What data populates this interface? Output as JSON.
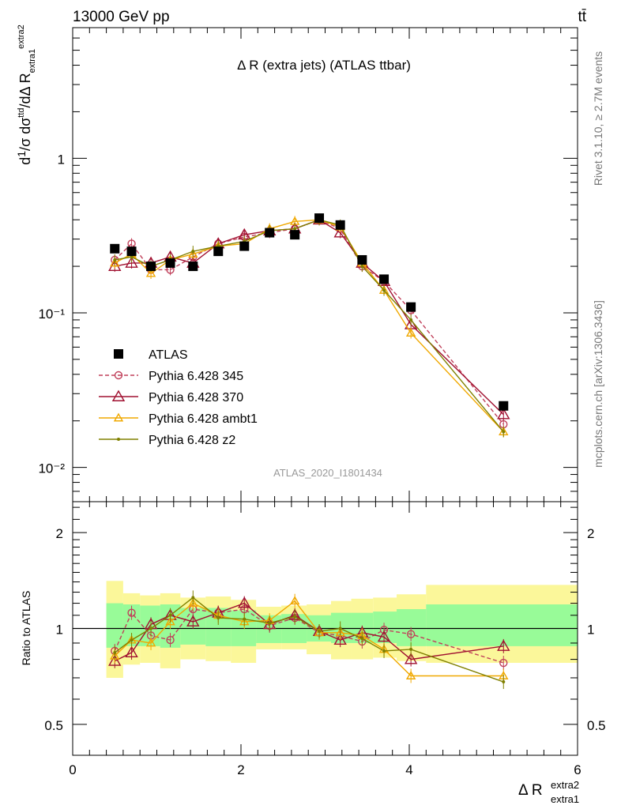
{
  "header": {
    "energy_label": "13000 GeV pp",
    "process_label": "tt̄",
    "plot_title": "Δ R (extra jets) (ATLAS ttbar)",
    "analysis_id": "ATLAS_2020_I1801434",
    "rivet_label": "Rivet 3.1.10, ≥ 2.7M events",
    "mcplots_label": "mcplots.cern.ch [arXiv:1306.3436]"
  },
  "axes": {
    "y_main_label": "d¹/σ dσ^ttd / dΔR extra1 extra2",
    "y_main_ticks": [
      "1",
      "10⁻¹",
      "10⁻²"
    ],
    "y_ratio_label": "Ratio to ATLAS",
    "y_ratio_ticks": [
      "2",
      "1",
      "0.5"
    ],
    "x_ticks": [
      "0",
      "2",
      "4",
      "6"
    ],
    "x_label_main": "Δ R",
    "x_label_sup": "extra2",
    "x_label_sub": "extra1"
  },
  "legend": [
    {
      "label": "ATLAS",
      "marker": "square",
      "color": "#000000"
    },
    {
      "label": "Pythia 6.428 345",
      "marker": "circle",
      "color": "#c0405a",
      "dashed": true
    },
    {
      "label": "Pythia 6.428 370",
      "marker": "triangle",
      "color": "#a01030"
    },
    {
      "label": "Pythia 6.428 ambt1",
      "marker": "triangle",
      "color": "#f0a800"
    },
    {
      "label": "Pythia 6.428 z2",
      "marker": "dot",
      "color": "#808000"
    }
  ],
  "chart_data": {
    "type": "scatter",
    "x": [
      0.5,
      0.7,
      0.93,
      1.16,
      1.43,
      1.73,
      2.04,
      2.34,
      2.64,
      2.93,
      3.18,
      3.44,
      3.7,
      4.02,
      5.12
    ],
    "xlim": [
      0,
      6
    ],
    "ylim": [
      0.006,
      7
    ],
    "y_scale": "log",
    "ratio_ylim": [
      0.4,
      2.5
    ],
    "ratio_y_scale": "log",
    "data": {
      "name": "ATLAS",
      "values": [
        0.26,
        0.25,
        0.2,
        0.21,
        0.2,
        0.25,
        0.27,
        0.33,
        0.32,
        0.41,
        0.37,
        0.22,
        0.165,
        0.109,
        0.025
      ]
    },
    "band_edges": [
      0.4,
      0.6,
      0.8,
      1.04,
      1.28,
      1.58,
      1.88,
      2.18,
      2.48,
      2.78,
      3.07,
      3.31,
      3.57,
      3.85,
      4.2,
      6.0
    ],
    "band_stat": [
      [
        0.87,
        1.2
      ],
      [
        0.88,
        1.19
      ],
      [
        0.88,
        1.18
      ],
      [
        0.87,
        1.19
      ],
      [
        0.89,
        1.16
      ],
      [
        0.88,
        1.16
      ],
      [
        0.88,
        1.14
      ],
      [
        0.9,
        1.1
      ],
      [
        0.9,
        1.11
      ],
      [
        0.91,
        1.1
      ],
      [
        0.9,
        1.12
      ],
      [
        0.9,
        1.12
      ],
      [
        0.9,
        1.13
      ],
      [
        0.88,
        1.15
      ],
      [
        0.88,
        1.19
      ]
    ],
    "band_total": [
      [
        0.7,
        1.41
      ],
      [
        0.77,
        1.29
      ],
      [
        0.78,
        1.27
      ],
      [
        0.75,
        1.29
      ],
      [
        0.8,
        1.25
      ],
      [
        0.79,
        1.26
      ],
      [
        0.78,
        1.23
      ],
      [
        0.86,
        1.17
      ],
      [
        0.86,
        1.18
      ],
      [
        0.83,
        1.19
      ],
      [
        0.8,
        1.22
      ],
      [
        0.8,
        1.24
      ],
      [
        0.81,
        1.25
      ],
      [
        0.79,
        1.28
      ],
      [
        0.78,
        1.37
      ]
    ],
    "series": [
      {
        "name": "Pythia 6.428 345",
        "values": [
          0.22,
          0.28,
          0.19,
          0.19,
          0.23,
          0.28,
          0.31,
          0.33,
          0.35,
          0.4,
          0.35,
          0.2,
          0.16,
          0.104,
          0.019
        ],
        "ratio": [
          0.85,
          1.12,
          0.95,
          0.92,
          1.15,
          1.12,
          1.15,
          1.02,
          1.08,
          0.97,
          0.95,
          0.91,
          0.99,
          0.96,
          0.78
        ]
      },
      {
        "name": "Pythia 6.428 370",
        "values": [
          0.2,
          0.21,
          0.21,
          0.23,
          0.21,
          0.28,
          0.32,
          0.34,
          0.35,
          0.4,
          0.33,
          0.21,
          0.16,
          0.084,
          0.022
        ],
        "ratio": [
          0.79,
          0.84,
          1.03,
          1.1,
          1.05,
          1.12,
          1.2,
          1.03,
          1.1,
          0.98,
          0.92,
          0.97,
          0.94,
          0.8,
          0.88
        ]
      },
      {
        "name": "Pythia 6.428 ambt1",
        "values": [
          0.21,
          0.24,
          0.18,
          0.22,
          0.24,
          0.27,
          0.28,
          0.35,
          0.39,
          0.4,
          0.36,
          0.21,
          0.14,
          0.074,
          0.017
        ],
        "ratio": [
          0.82,
          0.92,
          0.9,
          1.05,
          1.2,
          1.1,
          1.05,
          1.06,
          1.22,
          0.97,
          0.97,
          0.95,
          0.86,
          0.71,
          0.71
        ]
      },
      {
        "name": "Pythia 6.428 z2",
        "values": [
          0.22,
          0.23,
          0.2,
          0.22,
          0.25,
          0.27,
          0.29,
          0.34,
          0.35,
          0.4,
          0.37,
          0.2,
          0.14,
          0.09,
          0.017
        ],
        "ratio": [
          0.84,
          0.92,
          1.0,
          1.1,
          1.25,
          1.08,
          1.07,
          1.04,
          1.09,
          0.98,
          1.0,
          0.93,
          0.85,
          0.86,
          0.68
        ]
      }
    ]
  }
}
